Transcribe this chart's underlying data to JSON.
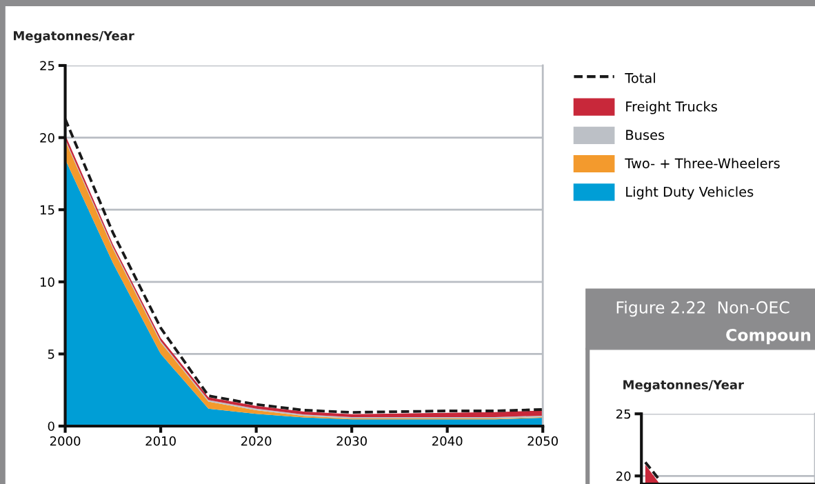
{
  "chart_data": [
    {
      "type": "area",
      "stacked": true,
      "ylabel": "Megatonnes/Year",
      "x": [
        2000,
        2005,
        2010,
        2015,
        2020,
        2025,
        2030,
        2035,
        2040,
        2045,
        2050
      ],
      "series": [
        {
          "name": "Light Duty Vehicles",
          "color": "#009ed6",
          "values": [
            18.5,
            11.3,
            5.0,
            1.2,
            0.85,
            0.6,
            0.47,
            0.47,
            0.47,
            0.47,
            0.57
          ]
        },
        {
          "name": "Two- + Three-Wheelers",
          "color": "#f39a2d",
          "values": [
            1.3,
            1.0,
            0.8,
            0.5,
            0.25,
            0.1,
            0.05,
            0.05,
            0.05,
            0.05,
            0.05
          ]
        },
        {
          "name": "Buses",
          "color": "#bcc0c6",
          "values": [
            0.1,
            0.1,
            0.1,
            0.1,
            0.1,
            0.1,
            0.1,
            0.1,
            0.1,
            0.1,
            0.1
          ]
        },
        {
          "name": "Freight Trucks",
          "color": "#c8283a",
          "values": [
            0.3,
            0.2,
            0.2,
            0.2,
            0.2,
            0.2,
            0.2,
            0.25,
            0.3,
            0.35,
            0.35
          ]
        },
        {
          "name": "Total",
          "type": "line",
          "line_style": "dashed",
          "color": "#1a1a1a",
          "values": [
            21.3,
            13.4,
            6.8,
            2.1,
            1.5,
            1.1,
            0.95,
            1.0,
            1.05,
            1.05,
            1.15
          ]
        }
      ],
      "xlim": [
        2000,
        2050
      ],
      "xticks": [
        2000,
        2010,
        2020,
        2030,
        2040,
        2050
      ],
      "ylim": [
        0,
        25
      ],
      "yticks": [
        0,
        5,
        10,
        15,
        20,
        25
      ],
      "grid": "y",
      "legend": "right"
    },
    {
      "type": "area",
      "title": "Figure 2.22  Non-OEC",
      "subtitle": "Compoun",
      "ylabel": "Megatonnes/Year",
      "categories": [
        null,
        null,
        null,
        null,
        null,
        null,
        null,
        null,
        null,
        null,
        null,
        null,
        null,
        null
      ],
      "series": [
        {
          "color": "#c8283a",
          "values": [
            20.9,
            19.5,
            null,
            null,
            null,
            null,
            null,
            null,
            null,
            null,
            null,
            null,
            null,
            null
          ]
        },
        {
          "type": "line",
          "line_style": "dashed",
          "color": "#1a1a1a",
          "values": [
            21.1,
            19.8,
            null,
            null,
            null,
            null,
            null,
            null,
            null,
            null,
            null,
            null,
            null,
            null
          ]
        }
      ],
      "ylim": [
        19.35,
        25
      ],
      "yticks": [
        20,
        25
      ],
      "grid": "y",
      "tick_labels": "y"
    }
  ]
}
